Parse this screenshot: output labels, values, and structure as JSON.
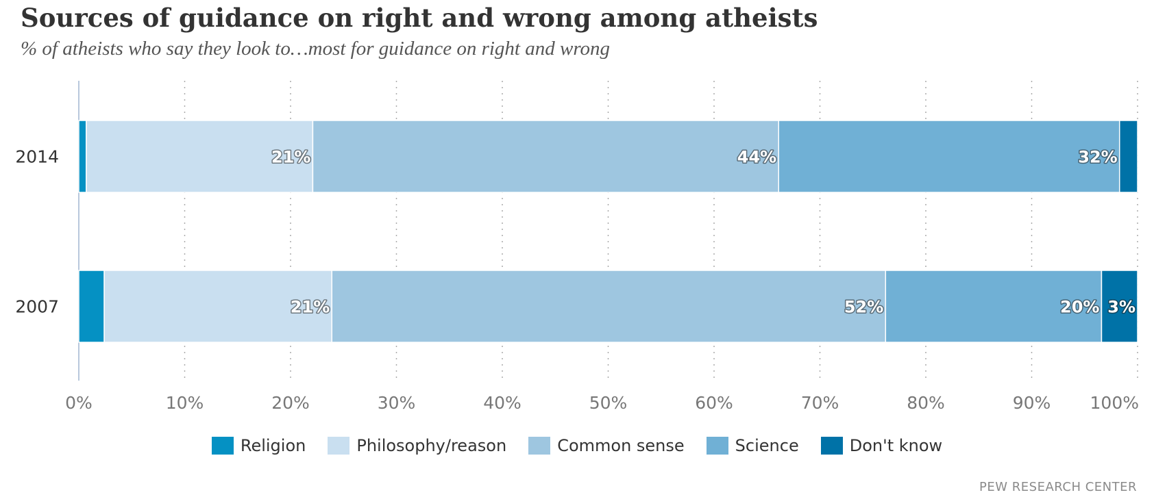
{
  "chart_data": {
    "type": "bar",
    "orientation": "horizontal",
    "stacked": true,
    "title": "Sources of guidance on right and wrong among atheists",
    "subtitle": "% of atheists who say they look to…most for guidance on right and wrong",
    "categories": [
      "2014",
      "2007"
    ],
    "series": [
      {
        "name": "Religion",
        "color": "#0591c3",
        "values": [
          0.7,
          2.4
        ],
        "labels": [
          "",
          ""
        ]
      },
      {
        "name": "Philosophy/reason",
        "color": "#c9dff0",
        "values": [
          21.4,
          21.5
        ],
        "labels": [
          "21%",
          "21%"
        ]
      },
      {
        "name": "Common sense",
        "color": "#9ec6e0",
        "values": [
          44.0,
          52.3
        ],
        "labels": [
          "44%",
          "52%"
        ]
      },
      {
        "name": "Science",
        "color": "#70b0d5",
        "values": [
          32.2,
          20.4
        ],
        "labels": [
          "32%",
          "20%"
        ]
      },
      {
        "name": "Don't know",
        "color": "#0072a7",
        "values": [
          1.7,
          3.4
        ],
        "labels": [
          "",
          "3%"
        ]
      }
    ],
    "xlim": [
      0,
      100
    ],
    "xticks": [
      "0%",
      "10%",
      "20%",
      "30%",
      "40%",
      "50%",
      "60%",
      "70%",
      "80%",
      "90%",
      "100%"
    ],
    "grid": true,
    "legend": "bottom-center"
  },
  "source": "PEW RESEARCH CENTER"
}
